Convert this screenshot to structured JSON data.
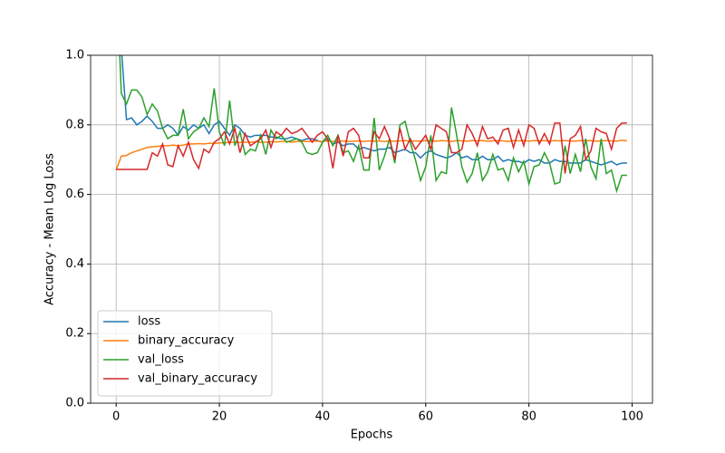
{
  "chart_data": {
    "type": "line",
    "xlabel": "Epochs",
    "ylabel": "Accuracy - Mean Log Loss",
    "x": [
      0,
      1,
      2,
      3,
      4,
      5,
      6,
      7,
      8,
      9,
      10,
      11,
      12,
      13,
      14,
      15,
      16,
      17,
      18,
      19,
      20,
      21,
      22,
      23,
      24,
      25,
      26,
      27,
      28,
      29,
      30,
      31,
      32,
      33,
      34,
      35,
      36,
      37,
      38,
      39,
      40,
      41,
      42,
      43,
      44,
      45,
      46,
      47,
      48,
      49,
      50,
      51,
      52,
      53,
      54,
      55,
      56,
      57,
      58,
      59,
      60,
      61,
      62,
      63,
      64,
      65,
      66,
      67,
      68,
      69,
      70,
      71,
      72,
      73,
      74,
      75,
      76,
      77,
      78,
      79,
      80,
      81,
      82,
      83,
      84,
      85,
      86,
      87,
      88,
      89,
      90,
      91,
      92,
      93,
      94,
      95,
      96,
      97,
      98,
      99
    ],
    "series": [
      {
        "name": "loss",
        "color": "#1f77b4",
        "values": [
          1.3,
          1.02,
          0.815,
          0.82,
          0.8,
          0.81,
          0.825,
          0.81,
          0.79,
          0.79,
          0.8,
          0.79,
          0.77,
          0.795,
          0.785,
          0.8,
          0.79,
          0.8,
          0.775,
          0.8,
          0.81,
          0.79,
          0.77,
          0.8,
          0.79,
          0.77,
          0.765,
          0.77,
          0.77,
          0.77,
          0.765,
          0.765,
          0.76,
          0.76,
          0.765,
          0.76,
          0.755,
          0.76,
          0.76,
          0.755,
          0.75,
          0.76,
          0.745,
          0.75,
          0.74,
          0.745,
          0.745,
          0.73,
          0.735,
          0.73,
          0.725,
          0.73,
          0.73,
          0.735,
          0.72,
          0.725,
          0.73,
          0.72,
          0.72,
          0.705,
          0.72,
          0.725,
          0.715,
          0.71,
          0.705,
          0.71,
          0.72,
          0.705,
          0.71,
          0.7,
          0.7,
          0.71,
          0.7,
          0.7,
          0.71,
          0.695,
          0.7,
          0.695,
          0.695,
          0.69,
          0.7,
          0.695,
          0.7,
          0.69,
          0.69,
          0.7,
          0.695,
          0.695,
          0.69,
          0.69,
          0.69,
          0.7,
          0.695,
          0.69,
          0.685,
          0.69,
          0.695,
          0.685,
          0.69,
          0.69
        ]
      },
      {
        "name": "binary_accuracy",
        "color": "#ff7f0e",
        "values": [
          0.67,
          0.71,
          0.712,
          0.72,
          0.725,
          0.73,
          0.735,
          0.737,
          0.738,
          0.74,
          0.74,
          0.742,
          0.74,
          0.742,
          0.745,
          0.745,
          0.746,
          0.745,
          0.747,
          0.746,
          0.748,
          0.748,
          0.75,
          0.75,
          0.749,
          0.75,
          0.75,
          0.752,
          0.75,
          0.75,
          0.752,
          0.751,
          0.752,
          0.753,
          0.75,
          0.752,
          0.753,
          0.752,
          0.753,
          0.753,
          0.752,
          0.754,
          0.752,
          0.753,
          0.754,
          0.752,
          0.753,
          0.754,
          0.752,
          0.754,
          0.753,
          0.754,
          0.752,
          0.754,
          0.753,
          0.754,
          0.755,
          0.753,
          0.754,
          0.753,
          0.755,
          0.754,
          0.753,
          0.755,
          0.754,
          0.752,
          0.755,
          0.754,
          0.753,
          0.755,
          0.754,
          0.755,
          0.753,
          0.754,
          0.755,
          0.754,
          0.752,
          0.755,
          0.754,
          0.755,
          0.753,
          0.755,
          0.754,
          0.755,
          0.753,
          0.755,
          0.754,
          0.755,
          0.754,
          0.753,
          0.755,
          0.754,
          0.755,
          0.753,
          0.754,
          0.755,
          0.754,
          0.753,
          0.756,
          0.754
        ]
      },
      {
        "name": "val_loss",
        "color": "#2ca02c",
        "values": [
          1.25,
          0.89,
          0.86,
          0.9,
          0.9,
          0.88,
          0.83,
          0.86,
          0.84,
          0.79,
          0.76,
          0.77,
          0.77,
          0.845,
          0.76,
          0.78,
          0.79,
          0.82,
          0.795,
          0.905,
          0.78,
          0.74,
          0.87,
          0.74,
          0.78,
          0.715,
          0.73,
          0.725,
          0.77,
          0.715,
          0.785,
          0.76,
          0.77,
          0.75,
          0.755,
          0.76,
          0.75,
          0.72,
          0.715,
          0.72,
          0.75,
          0.77,
          0.74,
          0.77,
          0.72,
          0.725,
          0.695,
          0.74,
          0.67,
          0.67,
          0.82,
          0.67,
          0.71,
          0.76,
          0.69,
          0.8,
          0.81,
          0.75,
          0.7,
          0.64,
          0.68,
          0.77,
          0.64,
          0.665,
          0.66,
          0.85,
          0.77,
          0.68,
          0.635,
          0.66,
          0.72,
          0.64,
          0.665,
          0.715,
          0.67,
          0.675,
          0.64,
          0.705,
          0.665,
          0.695,
          0.63,
          0.68,
          0.685,
          0.72,
          0.69,
          0.63,
          0.635,
          0.74,
          0.66,
          0.715,
          0.665,
          0.76,
          0.68,
          0.645,
          0.76,
          0.66,
          0.67,
          0.61,
          0.655,
          0.655
        ]
      },
      {
        "name": "val_binary_accuracy",
        "color": "#d62728",
        "values": [
          0.672,
          0.672,
          0.672,
          0.672,
          0.672,
          0.672,
          0.672,
          0.72,
          0.71,
          0.745,
          0.685,
          0.68,
          0.74,
          0.71,
          0.75,
          0.7,
          0.675,
          0.73,
          0.72,
          0.75,
          0.76,
          0.78,
          0.745,
          0.79,
          0.72,
          0.775,
          0.74,
          0.75,
          0.76,
          0.785,
          0.735,
          0.78,
          0.77,
          0.79,
          0.775,
          0.78,
          0.79,
          0.77,
          0.75,
          0.77,
          0.78,
          0.76,
          0.675,
          0.77,
          0.71,
          0.78,
          0.79,
          0.77,
          0.705,
          0.705,
          0.78,
          0.76,
          0.795,
          0.76,
          0.7,
          0.79,
          0.73,
          0.76,
          0.73,
          0.75,
          0.77,
          0.73,
          0.8,
          0.79,
          0.78,
          0.72,
          0.72,
          0.73,
          0.8,
          0.775,
          0.74,
          0.795,
          0.76,
          0.765,
          0.745,
          0.785,
          0.79,
          0.735,
          0.785,
          0.74,
          0.8,
          0.79,
          0.745,
          0.775,
          0.745,
          0.805,
          0.805,
          0.66,
          0.76,
          0.77,
          0.795,
          0.7,
          0.725,
          0.79,
          0.78,
          0.775,
          0.73,
          0.79,
          0.805,
          0.805
        ]
      }
    ],
    "xlim": [
      -4.95,
      103.95
    ],
    "xticks": [
      0,
      20,
      40,
      60,
      80,
      100
    ],
    "ylim": [
      0,
      1
    ],
    "yticks": [
      {
        "value": 0,
        "label": "0.0"
      },
      0.2,
      0.4,
      0.6,
      0.8,
      {
        "value": 1,
        "label": "1.0"
      }
    ],
    "grid": true,
    "legend": "lower left"
  }
}
